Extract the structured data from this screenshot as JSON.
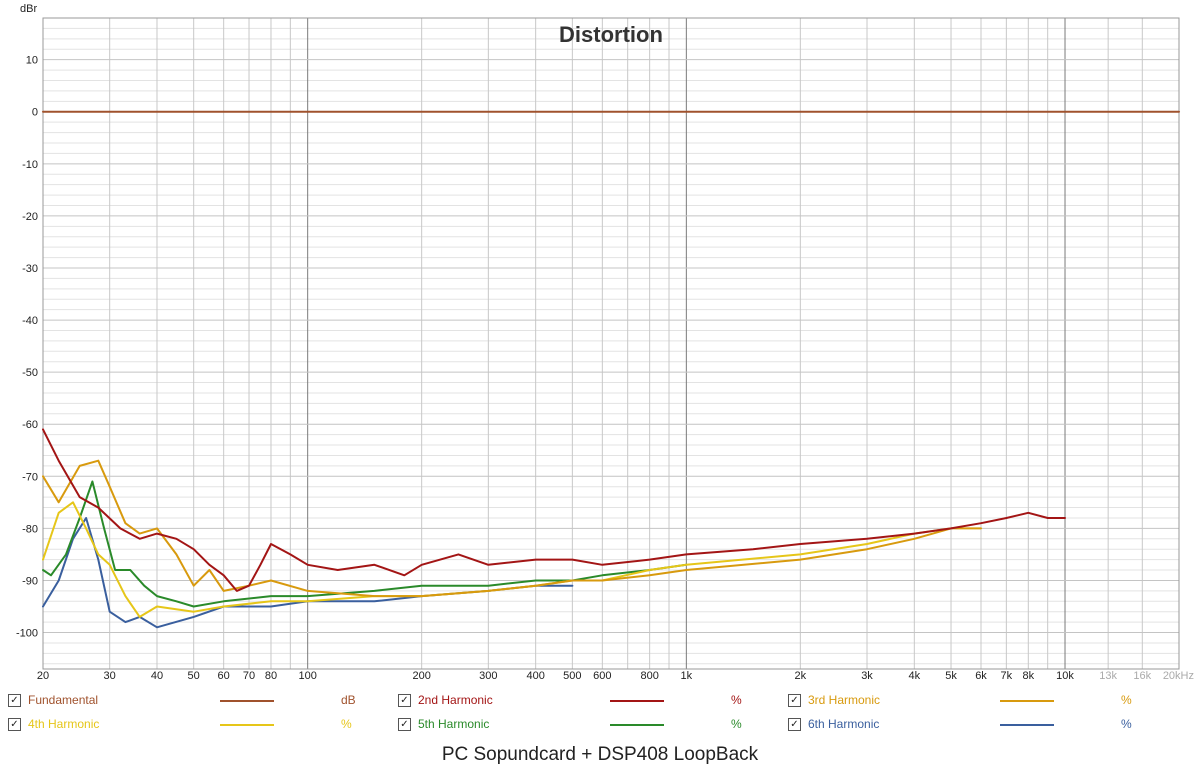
{
  "chart_data": {
    "type": "line",
    "title": "Distortion",
    "ylabel": "dBr",
    "xscale": "log",
    "xlim": [
      20,
      20000
    ],
    "ylim": [
      -107,
      18
    ],
    "grid": true,
    "legend_placement": "bottom",
    "y_ticks": [
      "10",
      "0",
      "-10",
      "-20",
      "-30",
      "-40",
      "-50",
      "-60",
      "-70",
      "-80",
      "-90",
      "-100"
    ],
    "y_tick_values": [
      10,
      0,
      -10,
      -20,
      -30,
      -40,
      -50,
      -60,
      -70,
      -80,
      -90,
      -100
    ],
    "x_ticks": [
      "20",
      "30",
      "40",
      "50",
      "60",
      "70",
      "80",
      "100",
      "200",
      "300",
      "400",
      "500",
      "600",
      "800",
      "1k",
      "2k",
      "3k",
      "4k",
      "5k",
      "6k",
      "7k",
      "8k",
      "10k",
      "13k",
      "16k",
      "20kHz"
    ],
    "x_tick_values": [
      20,
      30,
      40,
      50,
      60,
      70,
      80,
      100,
      200,
      300,
      400,
      500,
      600,
      800,
      1000,
      2000,
      3000,
      4000,
      5000,
      6000,
      7000,
      8000,
      10000,
      13000,
      16000,
      20000
    ],
    "x_ticks_greyed": [
      "13k",
      "16k",
      "20kHz"
    ],
    "series": [
      {
        "name": "Fundamental",
        "color": "#a0522d",
        "unit": "dB",
        "x": [
          20,
          20000
        ],
        "y": [
          0,
          0
        ]
      },
      {
        "name": "2nd Harmonic",
        "color": "#a31515",
        "unit": "%",
        "x": [
          20,
          22,
          25,
          28,
          32,
          36,
          40,
          45,
          50,
          55,
          60,
          65,
          70,
          75,
          80,
          90,
          100,
          120,
          150,
          180,
          200,
          250,
          300,
          400,
          500,
          600,
          800,
          1000,
          1500,
          2000,
          3000,
          4000,
          5000,
          6000,
          7000,
          8000,
          9000,
          10000
        ],
        "y": [
          -61,
          -67,
          -74,
          -76,
          -80,
          -82,
          -81,
          -82,
          -84,
          -87,
          -89,
          -92,
          -91,
          -87,
          -83,
          -85,
          -87,
          -88,
          -87,
          -89,
          -87,
          -85,
          -87,
          -86,
          -86,
          -87,
          -86,
          -85,
          -84,
          -83,
          -82,
          -81,
          -80,
          -79,
          -78,
          -77,
          -78,
          -78
        ]
      },
      {
        "name": "3rd Harmonic",
        "color": "#d89a0e",
        "unit": "%",
        "x": [
          20,
          22,
          25,
          28,
          30,
          33,
          36,
          40,
          45,
          50,
          55,
          60,
          70,
          80,
          100,
          150,
          200,
          300,
          400,
          500,
          600,
          800,
          1000,
          2000,
          3000,
          4000,
          5000,
          6000
        ],
        "y": [
          -70,
          -75,
          -68,
          -67,
          -72,
          -79,
          -81,
          -80,
          -85,
          -91,
          -88,
          -92,
          -91,
          -90,
          -92,
          -93,
          -93,
          -92,
          -91,
          -90,
          -90,
          -89,
          -88,
          -86,
          -84,
          -82,
          -80,
          -80
        ]
      },
      {
        "name": "4th Harmonic",
        "color": "#e6c619",
        "unit": "%",
        "x": [
          20,
          22,
          24,
          26,
          28,
          30,
          33,
          36,
          40,
          50,
          60,
          80,
          100,
          150,
          200,
          300,
          400,
          500,
          600,
          800,
          1000,
          2000,
          3000,
          4000,
          5000
        ],
        "y": [
          -86,
          -77,
          -75,
          -80,
          -85,
          -87,
          -93,
          -97,
          -95,
          -96,
          -95,
          -94,
          -94,
          -93,
          -93,
          -92,
          -91,
          -90,
          -90,
          -88,
          -87,
          -85,
          -83,
          -81,
          -80
        ]
      },
      {
        "name": "5th Harmonic",
        "color": "#2a8a2a",
        "unit": "%",
        "x": [
          20,
          21,
          23,
          25,
          27,
          29,
          31,
          34,
          37,
          40,
          45,
          50,
          60,
          80,
          100,
          150,
          200,
          300,
          400,
          500,
          600,
          800,
          1000
        ],
        "y": [
          -88,
          -89,
          -85,
          -78,
          -71,
          -80,
          -88,
          -88,
          -91,
          -93,
          -94,
          -95,
          -94,
          -93,
          -93,
          -92,
          -91,
          -91,
          -90,
          -90,
          -89,
          -88,
          -87
        ]
      },
      {
        "name": "6th Harmonic",
        "color": "#3a5f9e",
        "unit": "%",
        "x": [
          20,
          22,
          24,
          26,
          28,
          30,
          33,
          36,
          40,
          50,
          60,
          80,
          100,
          150,
          200,
          300,
          400,
          500
        ],
        "y": [
          -95,
          -90,
          -82,
          -78,
          -86,
          -96,
          -98,
          -97,
          -99,
          -97,
          -95,
          -95,
          -94,
          -94,
          -93,
          -92,
          -91,
          -91
        ]
      }
    ]
  },
  "legend": {
    "items": [
      {
        "label": "Fundamental",
        "unit": "dB",
        "checked": "✓",
        "color": "#a0522d"
      },
      {
        "label": "2nd Harmonic",
        "unit": "%",
        "checked": "✓",
        "color": "#a31515"
      },
      {
        "label": "3rd Harmonic",
        "unit": "%",
        "checked": "✓",
        "color": "#d89a0e"
      },
      {
        "label": "4th Harmonic",
        "unit": "%",
        "checked": "✓",
        "color": "#e6c619"
      },
      {
        "label": "5th Harmonic",
        "unit": "%",
        "checked": "✓",
        "color": "#2a8a2a"
      },
      {
        "label": "6th Harmonic",
        "unit": "%",
        "checked": "✓",
        "color": "#3a5f9e"
      }
    ]
  },
  "caption": "PC Sopundcard + DSP408 LoopBack"
}
